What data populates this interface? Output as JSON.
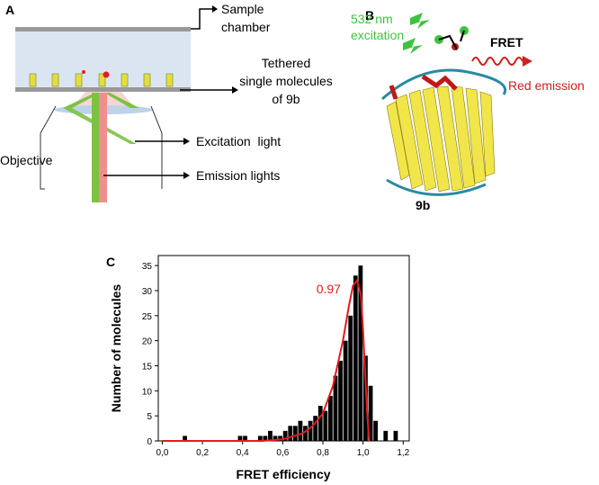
{
  "panel_a": {
    "label": "A",
    "sample_chamber": [
      "Sample",
      "chamber"
    ],
    "tethered": [
      "Tethered",
      "single molecules",
      "of 9b"
    ],
    "excitation_light": "Excitation  light",
    "emission_lights": "Emission lights",
    "objective": "Objective"
  },
  "panel_b": {
    "label": "B",
    "excitation": [
      "532 nm",
      "excitation"
    ],
    "fret": "FRET",
    "red_emission": "Red emission",
    "protein": "9b"
  },
  "chart_data": {
    "type": "histogram",
    "panel_label": "C",
    "x_label": "FRET efficiency",
    "y_label": "Number of molecules",
    "annotation": "0.97",
    "color": "#000000",
    "bins": [
      0,
      0.025,
      0.05,
      0.075,
      0.1,
      0.125,
      0.15,
      0.175,
      0.2,
      0.225,
      0.25,
      0.275,
      0.3,
      0.325,
      0.35,
      0.375,
      0.4,
      0.425,
      0.45,
      0.475,
      0.5,
      0.525,
      0.55,
      0.575,
      0.6,
      0.625,
      0.65,
      0.675,
      0.7,
      0.725,
      0.75,
      0.775,
      0.8,
      0.825,
      0.85,
      0.875,
      0.9,
      0.925,
      0.95,
      0.975,
      1.0,
      1.025,
      1.05,
      1.075,
      1.1,
      1.125,
      1.15,
      1.175,
      1.2
    ],
    "values": [
      0,
      0,
      0,
      0,
      1,
      0,
      0,
      0,
      0,
      0,
      0,
      0,
      0,
      0,
      0,
      1,
      1,
      0,
      0,
      1,
      1,
      2,
      1,
      1,
      2,
      3,
      3,
      4,
      3,
      4,
      5,
      7,
      6,
      9,
      13,
      16,
      20,
      25,
      33,
      35,
      17,
      11,
      4,
      0,
      2,
      0,
      2,
      0
    ],
    "fit": {
      "color": "#e8191c",
      "x": [
        0,
        0.5,
        0.6,
        0.7,
        0.75,
        0.8,
        0.85,
        0.9,
        0.93,
        0.95,
        0.97,
        0.99,
        1.0,
        1.01,
        1.02,
        1.03
      ],
      "y": [
        0,
        0,
        0.3,
        1.5,
        3,
        5.5,
        11,
        20,
        27,
        31,
        32,
        29,
        22,
        14,
        6,
        0
      ]
    },
    "xlim": [
      -0.02,
      1.23
    ],
    "ylim": [
      0,
      37
    ],
    "xticks": [
      {
        "value": 0,
        "label": "0,0"
      },
      {
        "value": 0.2,
        "label": "0,2"
      },
      {
        "value": 0.4,
        "label": "0,4"
      },
      {
        "value": 0.6,
        "label": "0,6"
      },
      {
        "value": 0.8,
        "label": "0,8"
      },
      {
        "value": 1.0,
        "label": "1,0"
      },
      {
        "value": 1.2,
        "label": "1,2"
      }
    ],
    "yticks": [
      0,
      5,
      10,
      15,
      20,
      25,
      30,
      35
    ]
  }
}
